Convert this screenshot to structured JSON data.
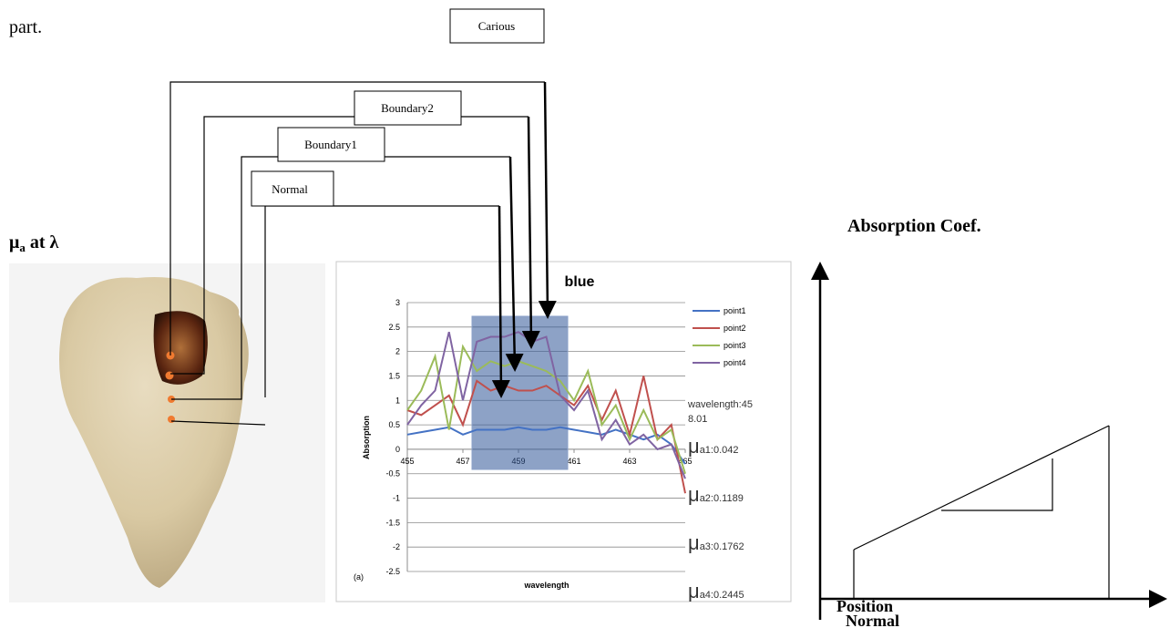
{
  "text": {
    "fragment": "part."
  },
  "labels": {
    "carious": "Carious",
    "boundary2": "Boundary2",
    "boundary1": "Boundary1",
    "normal": "Normal",
    "mu": "μ",
    "mu_sub": "a",
    "at_lambda": " at λ"
  },
  "chart_data": {
    "type": "line",
    "title": "blue",
    "x_label": "wavelength",
    "y_label": "Absorption",
    "panel": "(a)",
    "x": [
      455,
      455.5,
      456,
      456.5,
      457,
      457.5,
      458,
      458.5,
      459,
      459.5,
      460,
      460.5,
      461,
      461.5,
      462,
      462.5,
      463,
      463.5,
      464,
      464.5,
      465
    ],
    "series": [
      {
        "name": "point1",
        "color": "#4472c4",
        "values": [
          0.3,
          0.35,
          0.4,
          0.45,
          0.3,
          0.4,
          0.4,
          0.4,
          0.45,
          0.4,
          0.4,
          0.45,
          0.4,
          0.35,
          0.3,
          0.4,
          0.3,
          0.2,
          0.3,
          0.1,
          -0.3
        ]
      },
      {
        "name": "point2",
        "color": "#c0504d",
        "values": [
          0.8,
          0.7,
          0.9,
          1.1,
          0.5,
          1.4,
          1.2,
          1.3,
          1.2,
          1.2,
          1.3,
          1.1,
          0.9,
          1.3,
          0.6,
          1.2,
          0.3,
          1.5,
          0.2,
          0.5,
          -0.9
        ]
      },
      {
        "name": "point3",
        "color": "#9bbb59",
        "values": [
          0.8,
          1.2,
          1.9,
          0.4,
          2.1,
          1.6,
          1.8,
          1.7,
          1.8,
          1.7,
          1.6,
          1.4,
          1.0,
          1.6,
          0.5,
          0.9,
          0.2,
          0.8,
          0.2,
          0.4,
          -0.5
        ]
      },
      {
        "name": "point4",
        "color": "#8064a2",
        "values": [
          0.5,
          0.9,
          1.2,
          2.4,
          1.0,
          2.2,
          2.3,
          2.3,
          2.4,
          2.2,
          2.3,
          1.1,
          0.8,
          1.2,
          0.2,
          0.6,
          0.1,
          0.3,
          0.0,
          0.1,
          -0.6
        ]
      }
    ],
    "xlim": [
      455,
      465
    ],
    "xticks": [
      455,
      457,
      459,
      461,
      463,
      465
    ],
    "ylim": [
      -2.5,
      3
    ],
    "yticks": [
      3,
      2.5,
      2,
      1.5,
      1,
      0.5,
      0,
      -0.5,
      -1,
      -1.5,
      -2,
      -2.5
    ],
    "grid": true,
    "readout": {
      "wavelength": "wavelength:458.01",
      "symbol": "μ",
      "items": [
        "a1:0.042",
        "a2:0.1189",
        "a3:0.1762",
        "a4:0.2445"
      ]
    }
  },
  "schematic": {
    "y_label": "Absorption Coef.",
    "x_label": "Position",
    "x_sublabel": "Normal"
  }
}
